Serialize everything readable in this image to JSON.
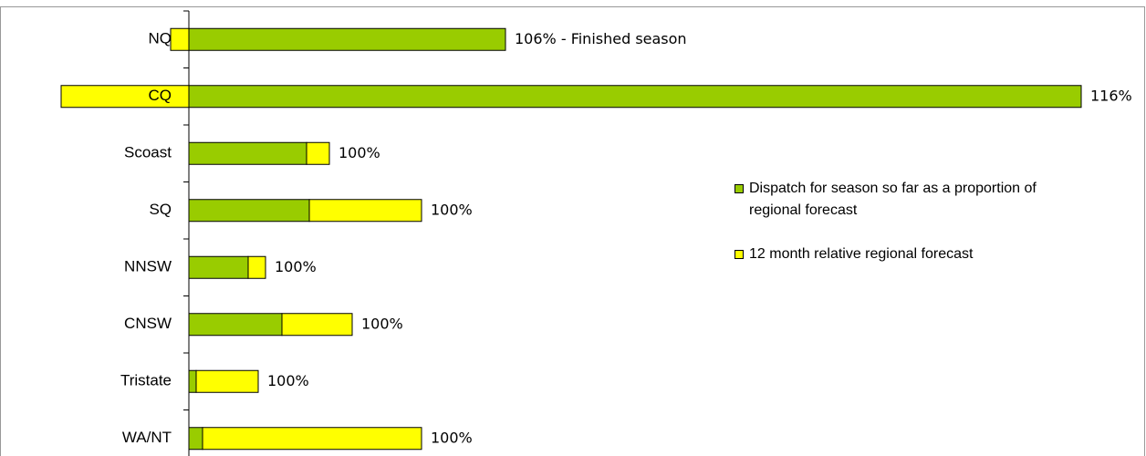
{
  "chart_data": {
    "type": "hbar_stacked",
    "categories": [
      "NQ",
      "CQ",
      "Scoast",
      "SQ",
      "NNSW",
      "CNSW",
      "Tristate",
      "WA/NT"
    ],
    "series": [
      {
        "name": "Dispatch for season so far as a proportion of regional forecast",
        "color": "#99cc00",
        "values": [
          34.7,
          97.8,
          12.9,
          13.2,
          6.5,
          10.2,
          0.8,
          1.5
        ]
      },
      {
        "name": "12 month relative regional forecast",
        "color": "#ffff00",
        "values": [
          -2.0,
          -14.0,
          2.5,
          12.3,
          1.9,
          7.7,
          6.8,
          24.0
        ]
      }
    ],
    "annotations": [
      "106% - Finished season",
      "116%",
      "100%",
      "100%",
      "100%",
      "100%",
      "100%",
      "100%"
    ],
    "xlim": [
      -14,
      100
    ]
  }
}
